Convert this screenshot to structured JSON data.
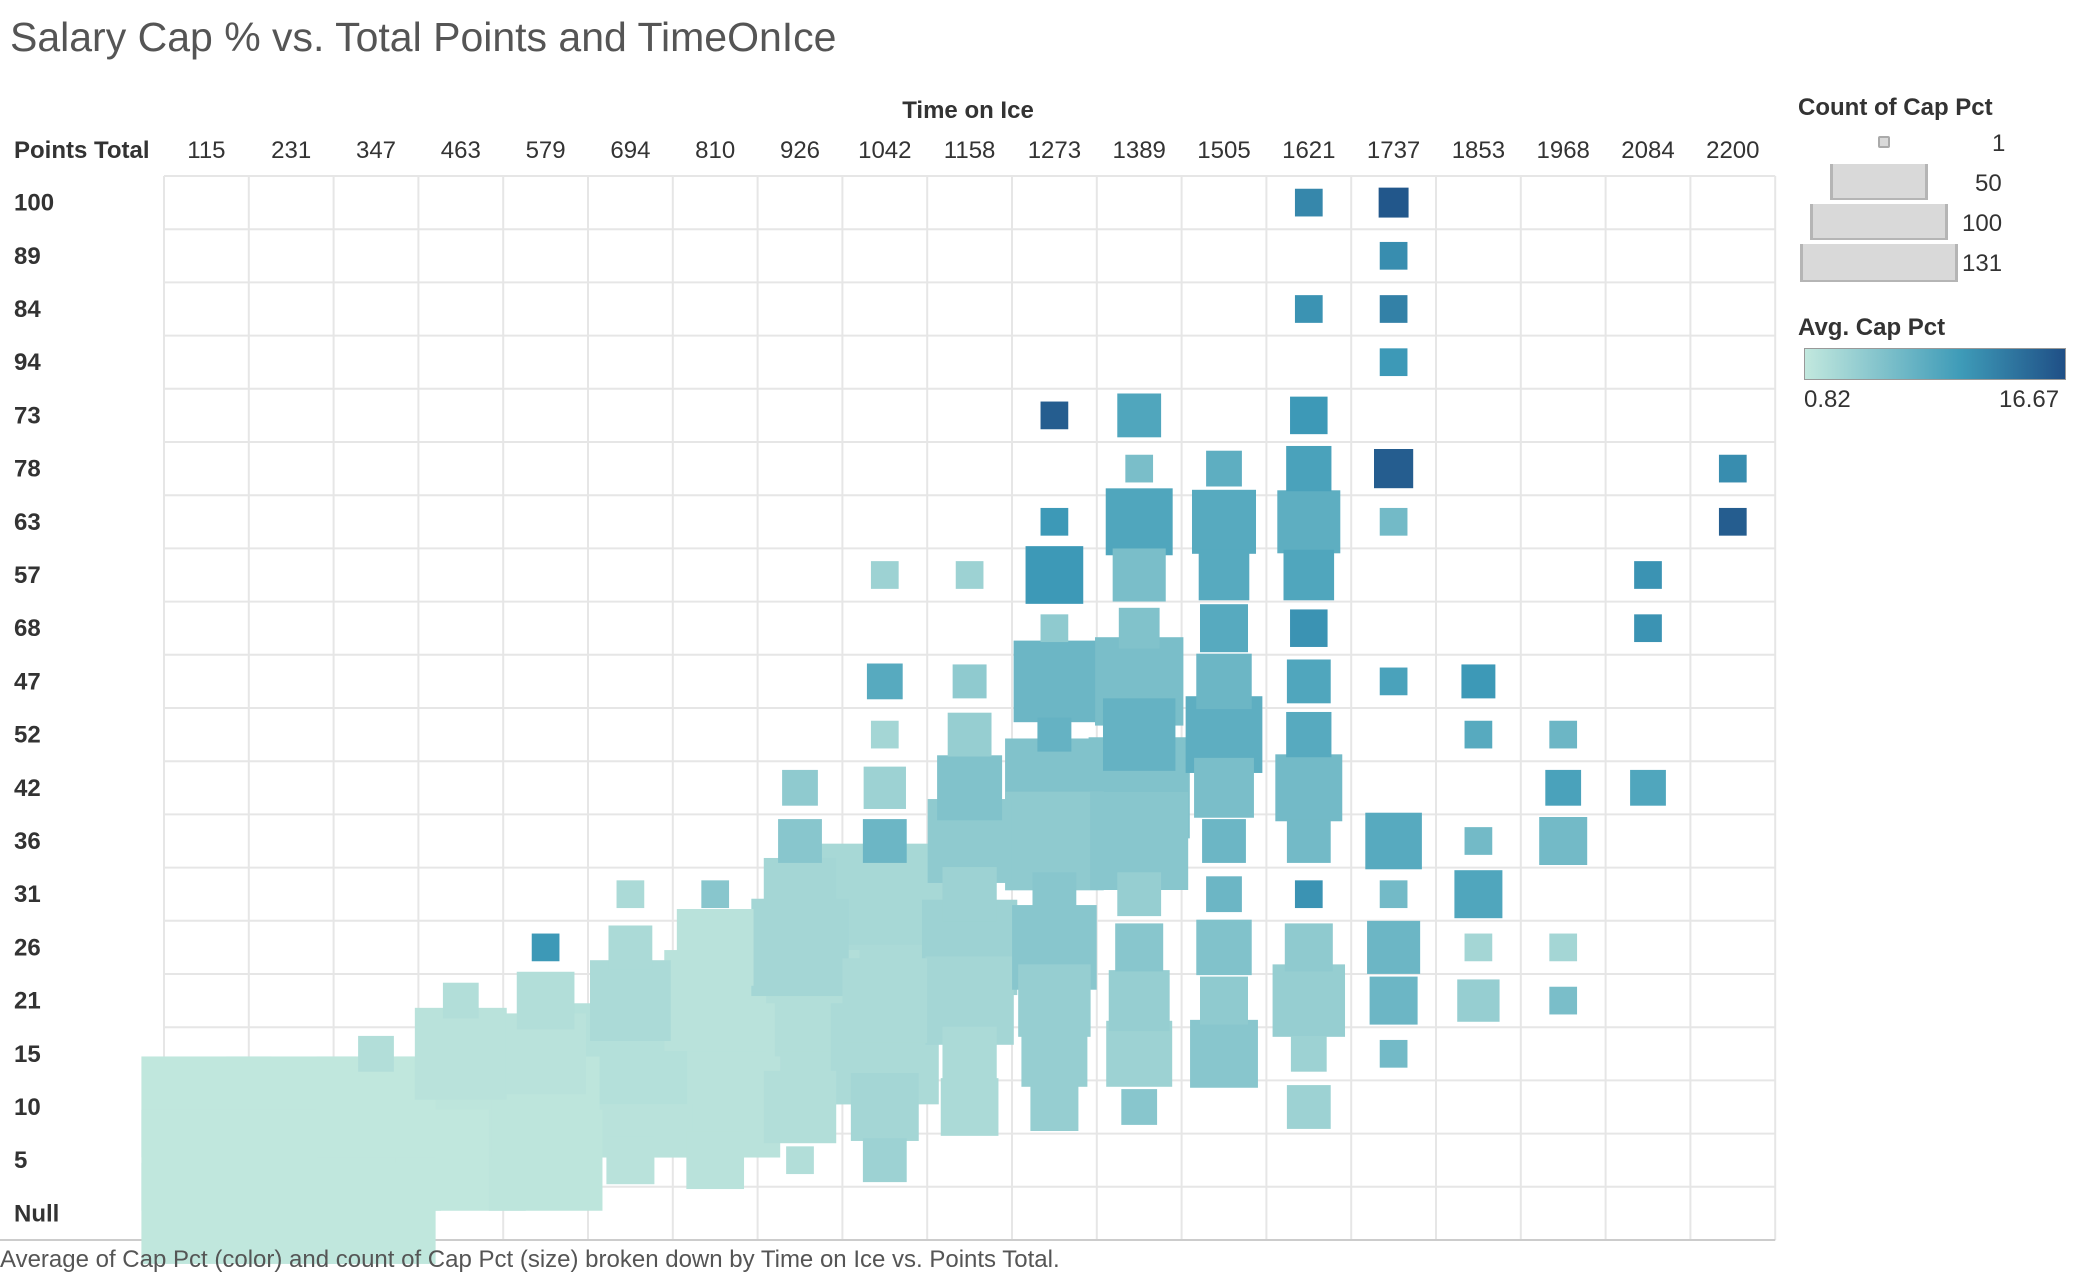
{
  "title": "Salary Cap % vs. Total Points and TimeOnIce",
  "caption": "Average of Cap Pct (color) and count of Cap Pct (size) broken down by Time on Ice vs. Points Total.",
  "legend": {
    "size_title": "Count of Cap Pct",
    "size_values": [
      "1",
      "50",
      "100",
      "131"
    ],
    "color_title": "Avg. Cap Pct",
    "color_min": "0.82",
    "color_max": "16.67",
    "color_ramp": [
      "#c2e8de",
      "#3e9bb8",
      "#1f4f86"
    ]
  },
  "chart_data": {
    "type": "heatmap",
    "title": "Salary Cap % vs. Total Points and TimeOnIce",
    "xlabel": "Time on Ice",
    "ylabel": "Points Total",
    "x_categories": [
      "115",
      "231",
      "347",
      "463",
      "579",
      "694",
      "810",
      "926",
      "1042",
      "1158",
      "1273",
      "1389",
      "1505",
      "1621",
      "1737",
      "1853",
      "1968",
      "2084",
      "2200"
    ],
    "y_categories": [
      "100",
      "89",
      "84",
      "94",
      "73",
      "78",
      "63",
      "57",
      "68",
      "47",
      "52",
      "42",
      "36",
      "31",
      "26",
      "21",
      "15",
      "10",
      "5",
      "Null"
    ],
    "size_measure": "Count of Cap Pct",
    "size_range": [
      1,
      131
    ],
    "color_measure": "Avg. Cap Pct",
    "color_range": [
      0.82,
      16.67
    ],
    "grid": true,
    "cells": [
      {
        "x": "1621",
        "y": "100",
        "count": 5,
        "avg_cap_pct": 12.0
      },
      {
        "x": "1737",
        "y": "100",
        "count": 6,
        "avg_cap_pct": 16.0
      },
      {
        "x": "1737",
        "y": "89",
        "count": 5,
        "avg_cap_pct": 11.5
      },
      {
        "x": "1621",
        "y": "84",
        "count": 5,
        "avg_cap_pct": 11.0
      },
      {
        "x": "1737",
        "y": "84",
        "count": 5,
        "avg_cap_pct": 12.5
      },
      {
        "x": "1737",
        "y": "94",
        "count": 5,
        "avg_cap_pct": 10.5
      },
      {
        "x": "1273",
        "y": "73",
        "count": 5,
        "avg_cap_pct": 15.5
      },
      {
        "x": "1389",
        "y": "73",
        "count": 14,
        "avg_cap_pct": 9.0
      },
      {
        "x": "1621",
        "y": "73",
        "count": 10,
        "avg_cap_pct": 10.5
      },
      {
        "x": "1389",
        "y": "78",
        "count": 5,
        "avg_cap_pct": 6.0
      },
      {
        "x": "1505",
        "y": "78",
        "count": 9,
        "avg_cap_pct": 8.0
      },
      {
        "x": "1621",
        "y": "78",
        "count": 15,
        "avg_cap_pct": 9.5
      },
      {
        "x": "1737",
        "y": "78",
        "count": 11,
        "avg_cap_pct": 15.5
      },
      {
        "x": "2200",
        "y": "78",
        "count": 5,
        "avg_cap_pct": 11.5
      },
      {
        "x": "1273",
        "y": "63",
        "count": 5,
        "avg_cap_pct": 10.5
      },
      {
        "x": "1389",
        "y": "63",
        "count": 34,
        "avg_cap_pct": 9.0
      },
      {
        "x": "1505",
        "y": "63",
        "count": 31,
        "avg_cap_pct": 8.5
      },
      {
        "x": "1621",
        "y": "63",
        "count": 30,
        "avg_cap_pct": 8.0
      },
      {
        "x": "1737",
        "y": "63",
        "count": 5,
        "avg_cap_pct": 6.5
      },
      {
        "x": "2200",
        "y": "63",
        "count": 5,
        "avg_cap_pct": 15.5
      },
      {
        "x": "1042",
        "y": "57",
        "count": 5,
        "avg_cap_pct": 3.5
      },
      {
        "x": "1158",
        "y": "57",
        "count": 5,
        "avg_cap_pct": 3.5
      },
      {
        "x": "1273",
        "y": "57",
        "count": 25,
        "avg_cap_pct": 10.5
      },
      {
        "x": "1389",
        "y": "57",
        "count": 21,
        "avg_cap_pct": 6.0
      },
      {
        "x": "1505",
        "y": "57",
        "count": 19,
        "avg_cap_pct": 8.5
      },
      {
        "x": "1621",
        "y": "57",
        "count": 19,
        "avg_cap_pct": 9.0
      },
      {
        "x": "2084",
        "y": "57",
        "count": 5,
        "avg_cap_pct": 11.0
      },
      {
        "x": "1273",
        "y": "68",
        "count": 5,
        "avg_cap_pct": 4.5
      },
      {
        "x": "1389",
        "y": "68",
        "count": 12,
        "avg_cap_pct": 5.5
      },
      {
        "x": "1505",
        "y": "68",
        "count": 17,
        "avg_cap_pct": 8.5
      },
      {
        "x": "1621",
        "y": "68",
        "count": 10,
        "avg_cap_pct": 11.0
      },
      {
        "x": "2084",
        "y": "68",
        "count": 5,
        "avg_cap_pct": 11.0
      },
      {
        "x": "1042",
        "y": "47",
        "count": 9,
        "avg_cap_pct": 8.5
      },
      {
        "x": "1158",
        "y": "47",
        "count": 8,
        "avg_cap_pct": 4.5
      },
      {
        "x": "1273",
        "y": "47",
        "count": 51,
        "avg_cap_pct": 7.0
      },
      {
        "x": "1389",
        "y": "47",
        "count": 60,
        "avg_cap_pct": 6.0
      },
      {
        "x": "1505",
        "y": "47",
        "count": 23,
        "avg_cap_pct": 7.0
      },
      {
        "x": "1621",
        "y": "47",
        "count": 14,
        "avg_cap_pct": 9.0
      },
      {
        "x": "1737",
        "y": "47",
        "count": 5,
        "avg_cap_pct": 9.5
      },
      {
        "x": "1853",
        "y": "47",
        "count": 8,
        "avg_cap_pct": 10.5
      },
      {
        "x": "1042",
        "y": "52",
        "count": 5,
        "avg_cap_pct": 3.0
      },
      {
        "x": "1158",
        "y": "52",
        "count": 14,
        "avg_cap_pct": 4.0
      },
      {
        "x": "1273",
        "y": "52",
        "count": 8,
        "avg_cap_pct": 7.5
      },
      {
        "x": "1389",
        "y": "52",
        "count": 40,
        "avg_cap_pct": 7.5
      },
      {
        "x": "1505",
        "y": "52",
        "count": 45,
        "avg_cap_pct": 8.0
      },
      {
        "x": "1621",
        "y": "52",
        "count": 15,
        "avg_cap_pct": 8.5
      },
      {
        "x": "1853",
        "y": "52",
        "count": 5,
        "avg_cap_pct": 8.5
      },
      {
        "x": "1968",
        "y": "52",
        "count": 5,
        "avg_cap_pct": 7.0
      },
      {
        "x": "926",
        "y": "42",
        "count": 9,
        "avg_cap_pct": 4.5
      },
      {
        "x": "1042",
        "y": "42",
        "count": 13,
        "avg_cap_pct": 3.5
      },
      {
        "x": "1158",
        "y": "42",
        "count": 32,
        "avg_cap_pct": 5.5
      },
      {
        "x": "1273",
        "y": "42",
        "count": 75,
        "avg_cap_pct": 5.5
      },
      {
        "x": "1389",
        "y": "42",
        "count": 79,
        "avg_cap_pct": 5.5
      },
      {
        "x": "1505",
        "y": "42",
        "count": 27,
        "avg_cap_pct": 6.0
      },
      {
        "x": "1621",
        "y": "42",
        "count": 34,
        "avg_cap_pct": 6.5
      },
      {
        "x": "1968",
        "y": "42",
        "count": 9,
        "avg_cap_pct": 9.5
      },
      {
        "x": "2084",
        "y": "42",
        "count": 9,
        "avg_cap_pct": 9.0
      },
      {
        "x": "926",
        "y": "36",
        "count": 14,
        "avg_cap_pct": 5.0
      },
      {
        "x": "1042",
        "y": "36",
        "count": 14,
        "avg_cap_pct": 7.0
      },
      {
        "x": "1158",
        "y": "36",
        "count": 54,
        "avg_cap_pct": 4.5
      },
      {
        "x": "1273",
        "y": "36",
        "count": 75,
        "avg_cap_pct": 4.5
      },
      {
        "x": "1389",
        "y": "36",
        "count": 74,
        "avg_cap_pct": 5.0
      },
      {
        "x": "1505",
        "y": "36",
        "count": 14,
        "avg_cap_pct": 7.0
      },
      {
        "x": "1621",
        "y": "36",
        "count": 14,
        "avg_cap_pct": 6.5
      },
      {
        "x": "1737",
        "y": "36",
        "count": 24,
        "avg_cap_pct": 8.5
      },
      {
        "x": "1853",
        "y": "36",
        "count": 5,
        "avg_cap_pct": 6.5
      },
      {
        "x": "1968",
        "y": "36",
        "count": 17,
        "avg_cap_pct": 6.5
      },
      {
        "x": "694",
        "y": "31",
        "count": 5,
        "avg_cap_pct": 2.5
      },
      {
        "x": "810",
        "y": "31",
        "count": 5,
        "avg_cap_pct": 5.0
      },
      {
        "x": "926",
        "y": "31",
        "count": 40,
        "avg_cap_pct": 3.0
      },
      {
        "x": "1042",
        "y": "31",
        "count": 125,
        "avg_cap_pct": 2.8
      },
      {
        "x": "1158",
        "y": "31",
        "count": 22,
        "avg_cap_pct": 3.5
      },
      {
        "x": "1273",
        "y": "31",
        "count": 14,
        "avg_cap_pct": 5.0
      },
      {
        "x": "1389",
        "y": "31",
        "count": 14,
        "avg_cap_pct": 4.0
      },
      {
        "x": "1505",
        "y": "31",
        "count": 9,
        "avg_cap_pct": 7.0
      },
      {
        "x": "1621",
        "y": "31",
        "count": 5,
        "avg_cap_pct": 11.0
      },
      {
        "x": "1737",
        "y": "31",
        "count": 5,
        "avg_cap_pct": 6.5
      },
      {
        "x": "1853",
        "y": "31",
        "count": 17,
        "avg_cap_pct": 9.0
      },
      {
        "x": "579",
        "y": "26",
        "count": 5,
        "avg_cap_pct": 10.5
      },
      {
        "x": "694",
        "y": "26",
        "count": 14,
        "avg_cap_pct": 2.5
      },
      {
        "x": "810",
        "y": "26",
        "count": 45,
        "avg_cap_pct": 1.5
      },
      {
        "x": "926",
        "y": "26",
        "count": 73,
        "avg_cap_pct": 3.0
      },
      {
        "x": "1042",
        "y": "26",
        "count": 131,
        "avg_cap_pct": 2.5
      },
      {
        "x": "1158",
        "y": "26",
        "count": 70,
        "avg_cap_pct": 3.5
      },
      {
        "x": "1273",
        "y": "26",
        "count": 55,
        "avg_cap_pct": 5.0
      },
      {
        "x": "1389",
        "y": "26",
        "count": 17,
        "avg_cap_pct": 5.0
      },
      {
        "x": "1505",
        "y": "26",
        "count": 23,
        "avg_cap_pct": 5.5
      },
      {
        "x": "1621",
        "y": "26",
        "count": 17,
        "avg_cap_pct": 4.5
      },
      {
        "x": "1737",
        "y": "26",
        "count": 21,
        "avg_cap_pct": 7.0
      },
      {
        "x": "1853",
        "y": "26",
        "count": 5,
        "avg_cap_pct": 3.0
      },
      {
        "x": "1968",
        "y": "26",
        "count": 5,
        "avg_cap_pct": 3.0
      },
      {
        "x": "463",
        "y": "21",
        "count": 9,
        "avg_cap_pct": 2.0
      },
      {
        "x": "579",
        "y": "21",
        "count": 25,
        "avg_cap_pct": 2.0
      },
      {
        "x": "694",
        "y": "21",
        "count": 50,
        "avg_cap_pct": 2.5
      },
      {
        "x": "810",
        "y": "21",
        "count": 80,
        "avg_cap_pct": 1.5
      },
      {
        "x": "926",
        "y": "21",
        "count": 110,
        "avg_cap_pct": 2.0
      },
      {
        "x": "1042",
        "y": "21",
        "count": 55,
        "avg_cap_pct": 2.5
      },
      {
        "x": "1158",
        "y": "21",
        "count": 60,
        "avg_cap_pct": 3.0
      },
      {
        "x": "1273",
        "y": "21",
        "count": 40,
        "avg_cap_pct": 4.0
      },
      {
        "x": "1389",
        "y": "21",
        "count": 28,
        "avg_cap_pct": 4.0
      },
      {
        "x": "1505",
        "y": "21",
        "count": 17,
        "avg_cap_pct": 4.5
      },
      {
        "x": "1621",
        "y": "21",
        "count": 40,
        "avg_cap_pct": 4.0
      },
      {
        "x": "1737",
        "y": "21",
        "count": 17,
        "avg_cap_pct": 7.0
      },
      {
        "x": "1853",
        "y": "21",
        "count": 13,
        "avg_cap_pct": 4.0
      },
      {
        "x": "1968",
        "y": "21",
        "count": 5,
        "avg_cap_pct": 6.0
      },
      {
        "x": "347",
        "y": "15",
        "count": 9,
        "avg_cap_pct": 2.0
      },
      {
        "x": "463",
        "y": "15",
        "count": 65,
        "avg_cap_pct": 1.5
      },
      {
        "x": "579",
        "y": "15",
        "count": 50,
        "avg_cap_pct": 1.5
      },
      {
        "x": "694",
        "y": "15",
        "count": 100,
        "avg_cap_pct": 1.8
      },
      {
        "x": "810",
        "y": "15",
        "count": 110,
        "avg_cap_pct": 1.5
      },
      {
        "x": "926",
        "y": "15",
        "count": 131,
        "avg_cap_pct": 2.0
      },
      {
        "x": "1042",
        "y": "15",
        "count": 90,
        "avg_cap_pct": 2.5
      },
      {
        "x": "1158",
        "y": "15",
        "count": 22,
        "avg_cap_pct": 2.5
      },
      {
        "x": "1273",
        "y": "15",
        "count": 33,
        "avg_cap_pct": 4.0
      },
      {
        "x": "1389",
        "y": "15",
        "count": 33,
        "avg_cap_pct": 3.5
      },
      {
        "x": "1505",
        "y": "15",
        "count": 35,
        "avg_cap_pct": 5.0
      },
      {
        "x": "1621",
        "y": "15",
        "count": 9,
        "avg_cap_pct": 3.5
      },
      {
        "x": "1737",
        "y": "15",
        "count": 5,
        "avg_cap_pct": 6.5
      },
      {
        "x": "115",
        "y": "10",
        "count": 131,
        "avg_cap_pct": 1.0
      },
      {
        "x": "231",
        "y": "10",
        "count": 131,
        "avg_cap_pct": 1.0
      },
      {
        "x": "347",
        "y": "10",
        "count": 110,
        "avg_cap_pct": 1.0
      },
      {
        "x": "463",
        "y": "10",
        "count": 131,
        "avg_cap_pct": 1.2
      },
      {
        "x": "579",
        "y": "10",
        "count": 90,
        "avg_cap_pct": 1.2
      },
      {
        "x": "694",
        "y": "10",
        "count": 120,
        "avg_cap_pct": 1.5
      },
      {
        "x": "810",
        "y": "10",
        "count": 131,
        "avg_cap_pct": 1.5
      },
      {
        "x": "926",
        "y": "10",
        "count": 40,
        "avg_cap_pct": 2.0
      },
      {
        "x": "1042",
        "y": "10",
        "count": 35,
        "avg_cap_pct": 3.0
      },
      {
        "x": "1158",
        "y": "10",
        "count": 25,
        "avg_cap_pct": 2.5
      },
      {
        "x": "1273",
        "y": "10",
        "count": 17,
        "avg_cap_pct": 4.0
      },
      {
        "x": "1389",
        "y": "10",
        "count": 9,
        "avg_cap_pct": 5.0
      },
      {
        "x": "1621",
        "y": "10",
        "count": 14,
        "avg_cap_pct": 3.5
      },
      {
        "x": "115",
        "y": "5",
        "count": 131,
        "avg_cap_pct": 1.0
      },
      {
        "x": "231",
        "y": "5",
        "count": 131,
        "avg_cap_pct": 1.0
      },
      {
        "x": "347",
        "y": "5",
        "count": 131,
        "avg_cap_pct": 1.0
      },
      {
        "x": "463",
        "y": "5",
        "count": 131,
        "avg_cap_pct": 1.0
      },
      {
        "x": "579",
        "y": "5",
        "count": 100,
        "avg_cap_pct": 1.2
      },
      {
        "x": "694",
        "y": "5",
        "count": 17,
        "avg_cap_pct": 1.5
      },
      {
        "x": "810",
        "y": "5",
        "count": 25,
        "avg_cap_pct": 1.5
      },
      {
        "x": "926",
        "y": "5",
        "count": 5,
        "avg_cap_pct": 2.0
      },
      {
        "x": "1042",
        "y": "5",
        "count": 14,
        "avg_cap_pct": 3.5
      },
      {
        "x": "115",
        "y": "Null",
        "count": 131,
        "avg_cap_pct": 1.0
      },
      {
        "x": "231",
        "y": "Null",
        "count": 120,
        "avg_cap_pct": 1.0
      },
      {
        "x": "347",
        "y": "Null",
        "count": 110,
        "avg_cap_pct": 1.0
      }
    ]
  }
}
